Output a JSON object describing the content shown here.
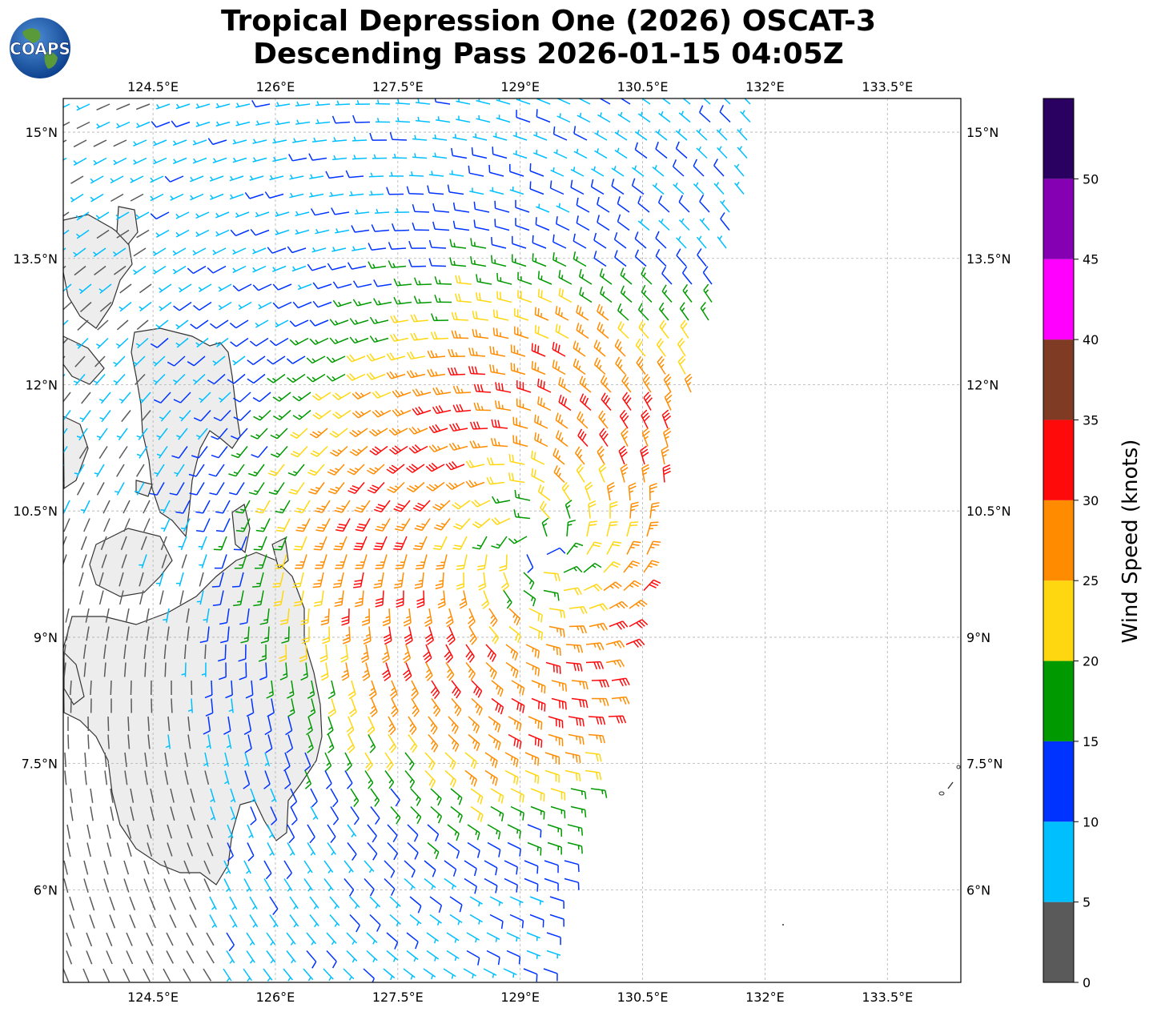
{
  "title": {
    "line1": "Tropical Depression One (2026) OSCAT-3",
    "line2": "Descending Pass 2026-01-15 04:05Z"
  },
  "logo": {
    "text": "COAPS"
  },
  "map": {
    "lon_labels": [
      "124.5°E",
      "126°E",
      "127.5°E",
      "129°E",
      "130.5°E",
      "132°E",
      "133.5°E"
    ],
    "lat_labels": [
      "15°N",
      "13.5°N",
      "12°N",
      "10.5°N",
      "9°N",
      "7.5°N",
      "6°N"
    ],
    "lon_range": [
      123.4,
      134.4
    ],
    "lat_range": [
      4.9,
      15.4
    ],
    "gridlines": true,
    "storm_center": {
      "lon": 129.2,
      "lat": 10.1
    }
  },
  "colorbar": {
    "label": "Wind Speed (knots)",
    "tick_labels": [
      "0",
      "5",
      "10",
      "15",
      "20",
      "25",
      "30",
      "35",
      "40",
      "45",
      "50"
    ],
    "bins": [
      {
        "min": 0,
        "max": 5,
        "color": "#5a5a5a"
      },
      {
        "min": 5,
        "max": 10,
        "color": "#00bfff"
      },
      {
        "min": 10,
        "max": 15,
        "color": "#0033ff"
      },
      {
        "min": 15,
        "max": 20,
        "color": "#009900"
      },
      {
        "min": 20,
        "max": 25,
        "color": "#ffd710"
      },
      {
        "min": 25,
        "max": 30,
        "color": "#ff8c00"
      },
      {
        "min": 30,
        "max": 35,
        "color": "#ff0a0a"
      },
      {
        "min": 35,
        "max": 40,
        "color": "#7f3b24"
      },
      {
        "min": 40,
        "max": 45,
        "color": "#ff00ff"
      },
      {
        "min": 45,
        "max": 50,
        "color": "#8500b3"
      },
      {
        "min": 50,
        "max": 55,
        "color": "#2a0060"
      }
    ]
  },
  "colors": {
    "land_fill": "#ededed",
    "coastline": "#333333",
    "grid": "#b0b0b0",
    "ocean": "#ffffff"
  }
}
